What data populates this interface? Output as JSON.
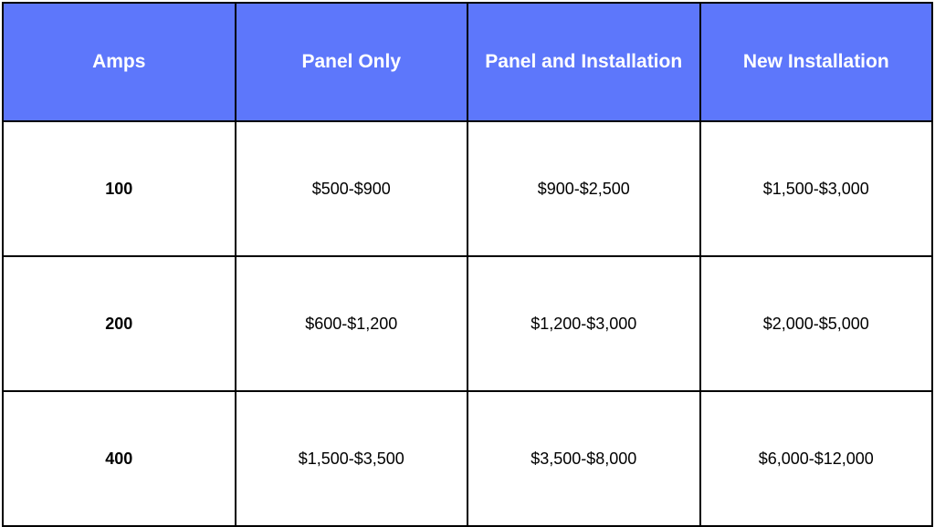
{
  "table": {
    "header_bg_color": "#5d77fb",
    "header_text_color": "#ffffff",
    "border_color": "#000000",
    "columns": [
      "Amps",
      "Panel Only",
      "Panel and Installation",
      "New Installation"
    ],
    "rows": [
      {
        "amps": "100",
        "panel_only": "$500-$900",
        "panel_and_installation": "$900-$2,500",
        "new_installation": "$1,500-$3,000"
      },
      {
        "amps": "200",
        "panel_only": "$600-$1,200",
        "panel_and_installation": "$1,200-$3,000",
        "new_installation": "$2,000-$5,000"
      },
      {
        "amps": "400",
        "panel_only": "$1,500-$3,500",
        "panel_and_installation": "$3,500-$8,000",
        "new_installation": "$6,000-$12,000"
      }
    ]
  }
}
